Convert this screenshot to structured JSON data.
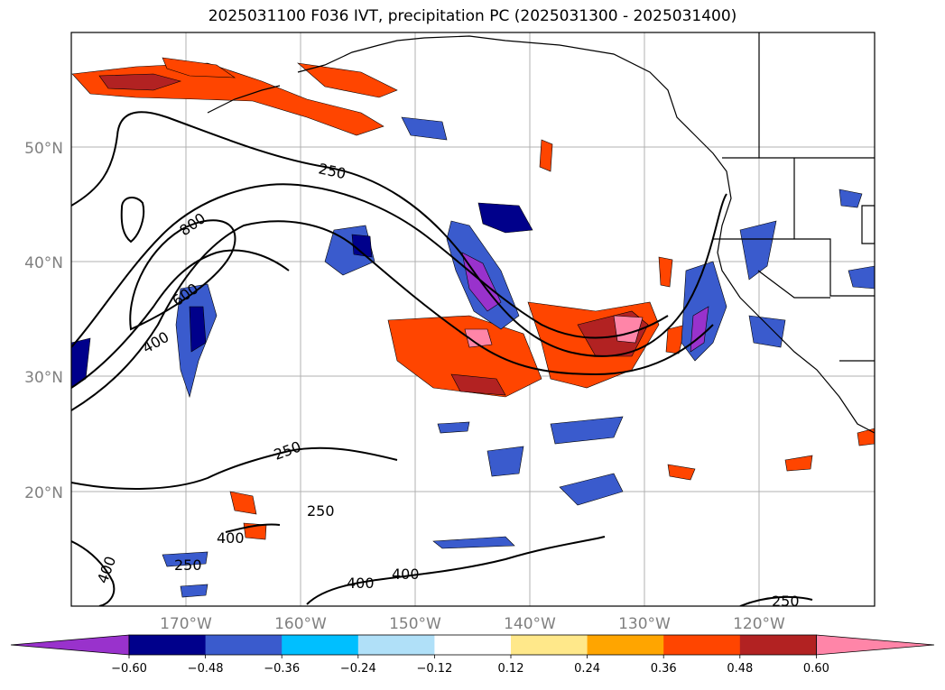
{
  "title": "2025031100 F036 IVT, precipitation PC (2025031300 - 2025031400)",
  "map": {
    "lon_labels": [
      "170°W",
      "160°W",
      "150°W",
      "140°W",
      "130°W",
      "120°W"
    ],
    "lat_labels": [
      "50°N",
      "40°N",
      "30°N",
      "20°N"
    ],
    "ivt_contour_labels": [
      "250",
      "800",
      "600",
      "400",
      "250",
      "250",
      "400",
      "250",
      "400",
      "400",
      "400",
      "250"
    ]
  },
  "colorbar": {
    "ticks": [
      "−0.60",
      "−0.48",
      "−0.36",
      "−0.24",
      "−0.12",
      "0.12",
      "0.24",
      "0.36",
      "0.48",
      "0.60"
    ],
    "colors": [
      "#9932cc",
      "#00008b",
      "#3a5bcd",
      "#00bfff",
      "#b0e0f8",
      "#ffffff",
      "#ffe88a",
      "#ffa500",
      "#ff4500",
      "#b22222",
      "#ff85a8"
    ]
  }
}
